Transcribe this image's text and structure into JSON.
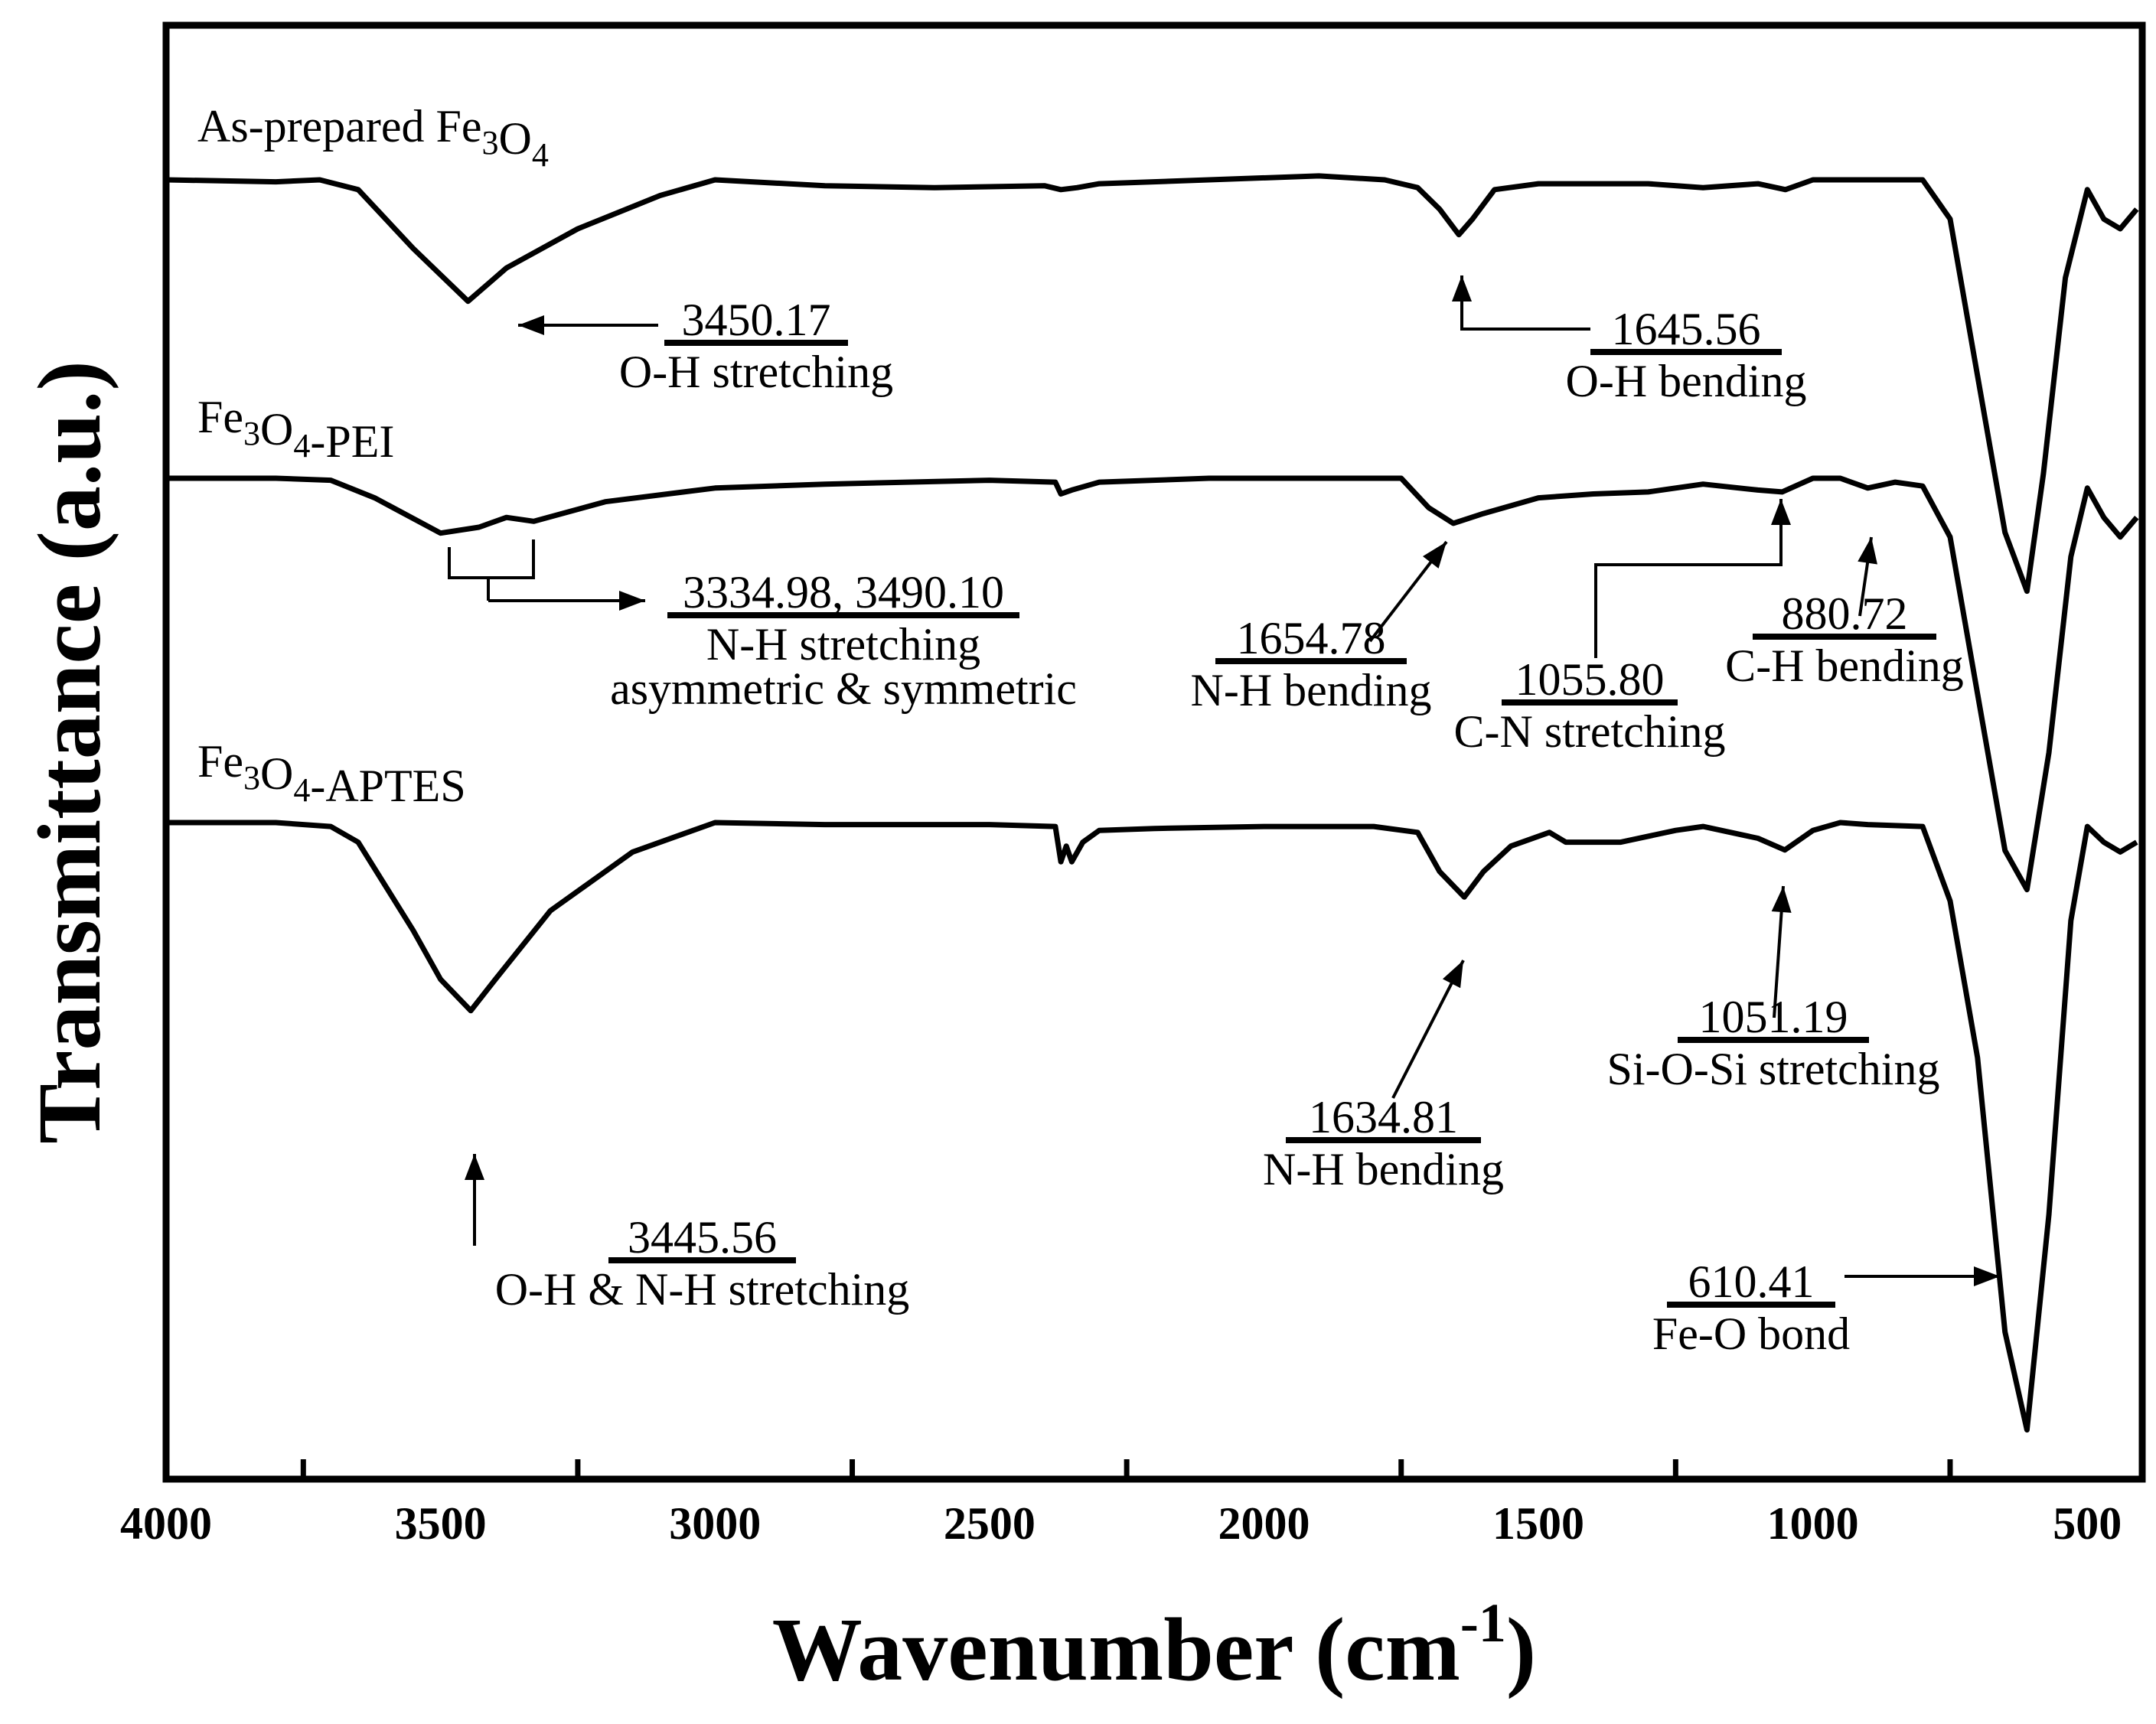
{
  "chart_data": {
    "type": "line",
    "xlabel": "Wavenumber (cm-1)",
    "xlabel_parts": {
      "main": "Wavenumber (cm",
      "sup": "-1",
      "close": ")"
    },
    "ylabel": "Transmittance (a.u.)",
    "xlim": [
      4000,
      400
    ],
    "x_reversed": true,
    "x_ticks": [
      4000,
      3500,
      3000,
      2500,
      2000,
      1500,
      1000,
      500
    ],
    "y_ticks_shown": false,
    "grid": false,
    "series": [
      {
        "name": "As-prepared Fe3O4",
        "label_parts": [
          {
            "t": "As-prepared Fe"
          },
          {
            "t": "3",
            "sub": true
          },
          {
            "t": "O"
          },
          {
            "t": "4",
            "sub": true
          }
        ],
        "points": [
          [
            4000,
            0.0
          ],
          [
            3800,
            0.01
          ],
          [
            3720,
            0.0
          ],
          [
            3650,
            0.05
          ],
          [
            3550,
            0.35
          ],
          [
            3450,
            0.62
          ],
          [
            3380,
            0.45
          ],
          [
            3250,
            0.25
          ],
          [
            3100,
            0.08
          ],
          [
            3000,
            0.0
          ],
          [
            2800,
            0.03
          ],
          [
            2600,
            0.04
          ],
          [
            2400,
            0.03
          ],
          [
            2370,
            0.05
          ],
          [
            2340,
            0.04
          ],
          [
            2300,
            0.02
          ],
          [
            2100,
            0.0
          ],
          [
            1900,
            -0.02
          ],
          [
            1780,
            0.0
          ],
          [
            1720,
            0.04
          ],
          [
            1680,
            0.15
          ],
          [
            1645,
            0.28
          ],
          [
            1620,
            0.2
          ],
          [
            1580,
            0.05
          ],
          [
            1500,
            0.02
          ],
          [
            1300,
            0.02
          ],
          [
            1200,
            0.04
          ],
          [
            1100,
            0.02
          ],
          [
            1050,
            0.05
          ],
          [
            1000,
            0.0
          ],
          [
            900,
            0.0
          ],
          [
            800,
            0.0
          ],
          [
            750,
            0.2
          ],
          [
            700,
            1.0
          ],
          [
            650,
            1.8
          ],
          [
            610,
            2.1
          ],
          [
            580,
            1.5
          ],
          [
            540,
            0.5
          ],
          [
            500,
            0.05
          ],
          [
            470,
            0.2
          ],
          [
            440,
            0.25
          ],
          [
            410,
            0.15
          ]
        ]
      },
      {
        "name": "Fe3O4-PEI",
        "label_parts": [
          {
            "t": "Fe"
          },
          {
            "t": "3",
            "sub": true
          },
          {
            "t": "O"
          },
          {
            "t": "4",
            "sub": true
          },
          {
            "t": "-PEI"
          }
        ],
        "points": [
          [
            4000,
            0.0
          ],
          [
            3800,
            0.0
          ],
          [
            3700,
            0.01
          ],
          [
            3620,
            0.1
          ],
          [
            3500,
            0.28
          ],
          [
            3430,
            0.25
          ],
          [
            3380,
            0.2
          ],
          [
            3330,
            0.22
          ],
          [
            3200,
            0.12
          ],
          [
            3000,
            0.05
          ],
          [
            2800,
            0.03
          ],
          [
            2500,
            0.01
          ],
          [
            2380,
            0.02
          ],
          [
            2370,
            0.08
          ],
          [
            2350,
            0.06
          ],
          [
            2300,
            0.02
          ],
          [
            2100,
            0.0
          ],
          [
            1900,
            0.0
          ],
          [
            1750,
            0.0
          ],
          [
            1700,
            0.15
          ],
          [
            1655,
            0.23
          ],
          [
            1600,
            0.18
          ],
          [
            1500,
            0.1
          ],
          [
            1400,
            0.08
          ],
          [
            1300,
            0.07
          ],
          [
            1200,
            0.03
          ],
          [
            1100,
            0.06
          ],
          [
            1056,
            0.07
          ],
          [
            1000,
            0.0
          ],
          [
            950,
            0.0
          ],
          [
            900,
            0.05
          ],
          [
            850,
            0.02
          ],
          [
            800,
            0.04
          ],
          [
            750,
            0.3
          ],
          [
            700,
            1.1
          ],
          [
            650,
            1.9
          ],
          [
            610,
            2.1
          ],
          [
            570,
            1.4
          ],
          [
            530,
            0.4
          ],
          [
            500,
            0.05
          ],
          [
            470,
            0.2
          ],
          [
            440,
            0.3
          ],
          [
            410,
            0.2
          ]
        ]
      },
      {
        "name": "Fe3O4-APTES",
        "label_parts": [
          {
            "t": "Fe"
          },
          {
            "t": "3",
            "sub": true
          },
          {
            "t": "O"
          },
          {
            "t": "4",
            "sub": true
          },
          {
            "t": "-APTES"
          }
        ],
        "points": [
          [
            4000,
            0.0
          ],
          [
            3800,
            0.0
          ],
          [
            3700,
            0.02
          ],
          [
            3650,
            0.1
          ],
          [
            3550,
            0.55
          ],
          [
            3500,
            0.8
          ],
          [
            3445,
            0.96
          ],
          [
            3400,
            0.8
          ],
          [
            3300,
            0.45
          ],
          [
            3150,
            0.15
          ],
          [
            3000,
            0.0
          ],
          [
            2800,
            0.01
          ],
          [
            2500,
            0.01
          ],
          [
            2380,
            0.02
          ],
          [
            2370,
            0.2
          ],
          [
            2360,
            0.12
          ],
          [
            2350,
            0.2
          ],
          [
            2330,
            0.1
          ],
          [
            2300,
            0.04
          ],
          [
            2200,
            0.03
          ],
          [
            2000,
            0.02
          ],
          [
            1800,
            0.02
          ],
          [
            1720,
            0.05
          ],
          [
            1680,
            0.25
          ],
          [
            1635,
            0.38
          ],
          [
            1600,
            0.25
          ],
          [
            1550,
            0.12
          ],
          [
            1480,
            0.05
          ],
          [
            1450,
            0.1
          ],
          [
            1350,
            0.1
          ],
          [
            1250,
            0.04
          ],
          [
            1200,
            0.02
          ],
          [
            1100,
            0.08
          ],
          [
            1051,
            0.14
          ],
          [
            1000,
            0.04
          ],
          [
            950,
            0.0
          ],
          [
            900,
            0.01
          ],
          [
            800,
            0.02
          ],
          [
            750,
            0.4
          ],
          [
            700,
            1.2
          ],
          [
            650,
            2.6
          ],
          [
            610,
            3.1
          ],
          [
            570,
            2.0
          ],
          [
            530,
            0.5
          ],
          [
            500,
            0.02
          ],
          [
            470,
            0.1
          ],
          [
            440,
            0.15
          ],
          [
            410,
            0.1
          ]
        ]
      }
    ],
    "annotations": [
      {
        "value": "3450.17",
        "desc": "O-H stretching"
      },
      {
        "value": "1645.56",
        "desc": "O-H bending"
      },
      {
        "value": "3334.98, 3490.10",
        "desc": "N-H stretching",
        "desc2": "asymmetric & symmetric"
      },
      {
        "value": "1654.78",
        "desc": "N-H bending"
      },
      {
        "value": "1055.80",
        "desc": "C-N stretching"
      },
      {
        "value": "880.72",
        "desc": "C-H bending"
      },
      {
        "value": "3445.56",
        "desc": "O-H & N-H stretching"
      },
      {
        "value": "1634.81",
        "desc": "N-H bending"
      },
      {
        "value": "1051.19",
        "desc": "Si-O-Si stretching"
      },
      {
        "value": "610.41",
        "desc": "Fe-O bond"
      }
    ]
  }
}
